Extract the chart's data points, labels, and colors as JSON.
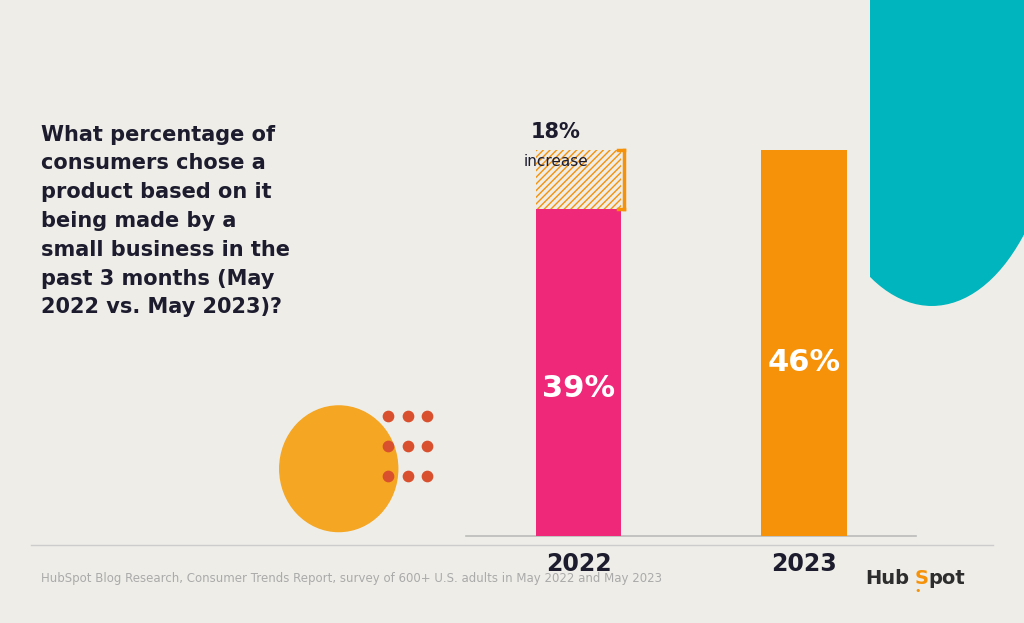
{
  "bg_color": "#eeede8",
  "bar_2022_value": 39,
  "bar_2023_value": 46,
  "increase_value": 18,
  "bar_2022_color": "#f0287a",
  "bar_2023_color": "#f5920a",
  "hatch_color": "#f5920a",
  "question_text": "What percentage of\nconsumers chose a\nproduct based on it\nbeing made by a\nsmall business in the\npast 3 months (May\n2022 vs. May 2023)?",
  "question_color": "#1c1c2e",
  "increase_label_pct": "18%",
  "increase_label_word": "increase",
  "bar_label_color": "#ffffff",
  "year_labels": [
    "2022",
    "2023"
  ],
  "footer_text": "HubSpot Blog Research, Consumer Trends Report, survey of 600+ U.S. adults in May 2022 and May 2023",
  "footer_color": "#aaaaaa",
  "teal_circle_color": "#00b5bd",
  "gold_circle_color": "#f5a623",
  "dot_color": "#d9502e",
  "hubspot_orange": "#f5920a",
  "hubspot_dark": "#2d2d2d"
}
